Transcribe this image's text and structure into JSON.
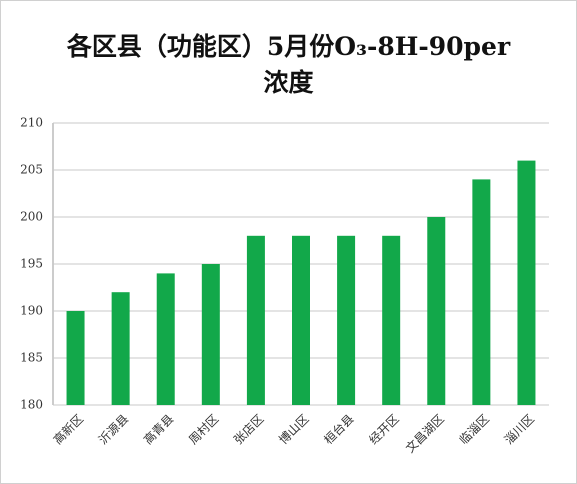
{
  "chart_data": {
    "type": "bar",
    "title": "各区县（功能区）5月份O₃-8H-90per浓度",
    "categories": [
      "高新区",
      "沂源县",
      "高青县",
      "周村区",
      "张店区",
      "博山区",
      "桓台县",
      "经开区",
      "文昌湖区",
      "临淄区",
      "淄川区"
    ],
    "values": [
      190,
      192,
      194,
      195,
      198,
      198,
      198,
      198,
      200,
      204,
      206
    ],
    "color": "#12a84a",
    "ylim": [
      180,
      210
    ],
    "yticks": [
      180,
      185,
      190,
      195,
      200,
      205,
      210
    ],
    "grid": true
  }
}
